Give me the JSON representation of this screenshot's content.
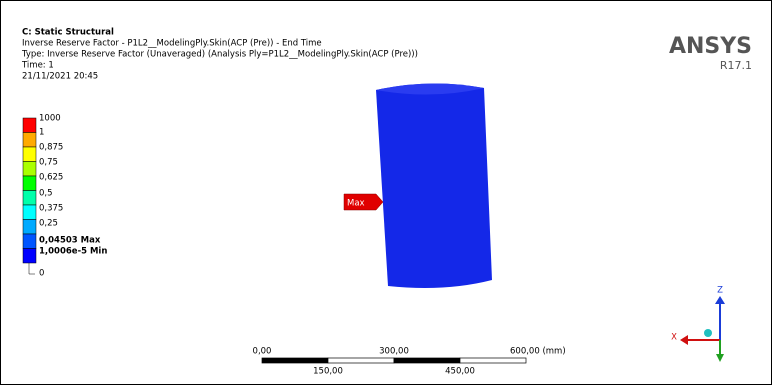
{
  "header": {
    "title": "C: Static Structural",
    "lines": [
      "Inverse Reserve Factor - P1L2__ModelingPly.Skin(ACP (Pre)) - End Time",
      "Type: Inverse Reserve Factor (Unaveraged) (Analysis Ply=P1L2__ModelingPly.Skin(ACP (Pre)))",
      "Time: 1",
      "21/11/2021 20:45"
    ]
  },
  "logo": {
    "name": "ANSYS",
    "version": "R17.1"
  },
  "legend": {
    "labels": [
      "1000",
      "1",
      "0,875",
      "0,75",
      "0,625",
      "0,5",
      "0,375",
      "0,25",
      "0,04503 Max",
      "1,0006e-5 Min",
      "0"
    ]
  },
  "probe": "Max",
  "scale_bar": {
    "top": [
      "0,00",
      "300,00",
      "600,00 (mm)"
    ],
    "bottom": [
      "150,00",
      "450,00"
    ]
  },
  "triad": {
    "z": "Z",
    "x": "X"
  }
}
